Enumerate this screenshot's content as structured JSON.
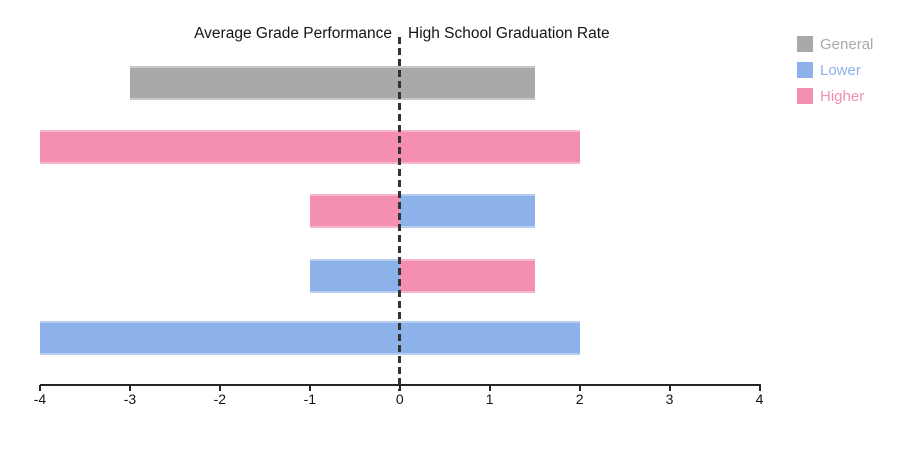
{
  "titles": {
    "left": "Average Grade Performance",
    "right": "High School Graduation Rate"
  },
  "colors": {
    "axis": "#262626",
    "zero_line": "#333333",
    "background": "#ffffff",
    "title_text": "#141414"
  },
  "chart_data": {
    "type": "bar",
    "orientation": "horizontal",
    "column_titles": {
      "left": "Average Grade Performance",
      "right": "High School Graduation Rate"
    },
    "x_axis": {
      "min": -4,
      "max": 4,
      "ticks": [
        -4,
        -3,
        -2,
        -1,
        0,
        1,
        2,
        3,
        4
      ]
    },
    "zero_line_at": 0,
    "grid": false,
    "legend_position": "top-right",
    "groups": [
      {
        "name": "General",
        "color": "#A9A9A9"
      },
      {
        "name": "Lower",
        "color": "#8DB2EA"
      },
      {
        "name": "Higher",
        "color": "#F48FB0"
      }
    ],
    "rows": [
      {
        "segments": [
          {
            "group": "General",
            "from": -3,
            "to": 1.5
          }
        ]
      },
      {
        "segments": [
          {
            "group": "Higher",
            "from": -4,
            "to": 2
          }
        ]
      },
      {
        "segments": [
          {
            "group": "Higher",
            "from": -1,
            "to": 0
          },
          {
            "group": "Lower",
            "from": 0,
            "to": 1.5
          }
        ]
      },
      {
        "segments": [
          {
            "group": "Lower",
            "from": -1,
            "to": 0
          },
          {
            "group": "Higher",
            "from": 0,
            "to": 1.5
          }
        ]
      },
      {
        "segments": [
          {
            "group": "Lower",
            "from": -4,
            "to": 2
          }
        ]
      }
    ]
  }
}
